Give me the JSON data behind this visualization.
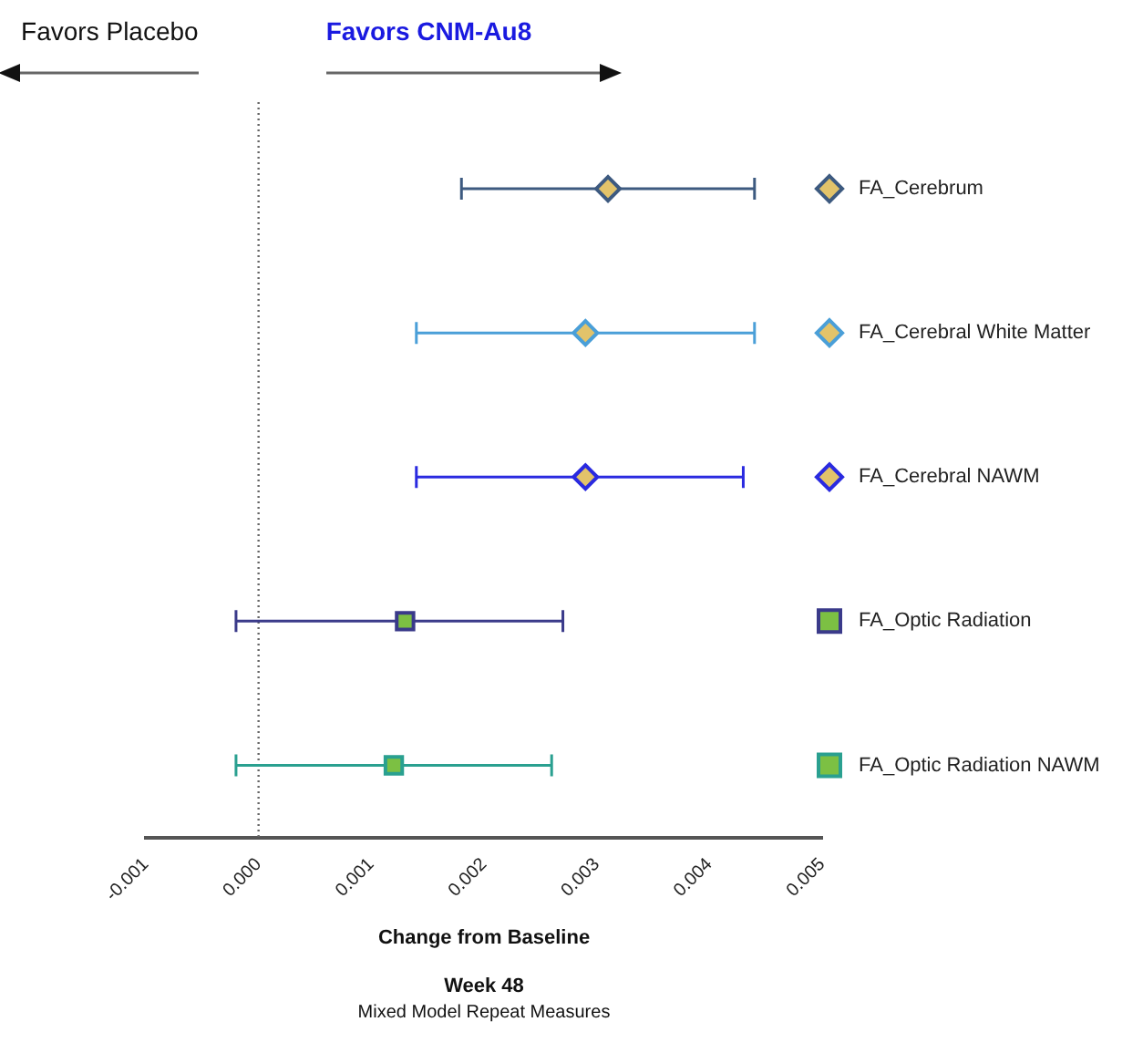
{
  "chart_data": {
    "type": "scatter",
    "orientation": "horizontal",
    "title": "Week 48",
    "subtitle": "Mixed Model Repeat Measures",
    "xlabel": "Change from Baseline",
    "annotations": [
      "Favors Placebo",
      "Favors CNM-Au8"
    ],
    "categories": [
      null,
      null,
      null,
      null,
      null
    ],
    "xlim": [
      -0.001,
      0.005
    ],
    "xticks": [
      {
        "value": -0.001,
        "label": "-0.001"
      },
      {
        "value": 0,
        "label": "0.000"
      },
      {
        "value": 0.001,
        "label": "0.001"
      },
      {
        "value": 0.002,
        "label": "0.002"
      },
      {
        "value": 0.003,
        "label": "0.003"
      },
      {
        "value": 0.004,
        "label": "0.004"
      },
      {
        "value": 0.005,
        "label": "0.005"
      }
    ],
    "grid": false,
    "legend": "right",
    "ref_lines": [
      {
        "axis": "x",
        "value": 0,
        "color": "#666666",
        "line_style": "dotted"
      }
    ],
    "series": [
      {
        "name": "FA_Cerebrum",
        "color": "#3d5a80",
        "marker": "diamond",
        "values": [
          0.0031,
          null,
          null,
          null,
          null
        ],
        "errors": [
          [
            0.0018,
            0.0044
          ],
          null,
          null,
          null,
          null
        ]
      },
      {
        "name": "FA_Cerebral White Matter",
        "color": "#4a9fd8",
        "marker": "diamond",
        "values": [
          null,
          0.0029,
          null,
          null,
          null
        ],
        "errors": [
          null,
          [
            0.0014,
            0.0044
          ],
          null,
          null,
          null
        ]
      },
      {
        "name": "FA_Cerebral NAWM",
        "color": "#2a2ae0",
        "marker": "diamond",
        "values": [
          null,
          null,
          0.0029,
          null,
          null
        ],
        "errors": [
          null,
          null,
          [
            0.0014,
            0.0043
          ],
          null,
          null
        ]
      },
      {
        "name": "FA_Optic Radiation",
        "color": "#3a3a8a",
        "marker": "square",
        "values": [
          null,
          null,
          null,
          0.0013,
          null
        ],
        "errors": [
          null,
          null,
          null,
          [
            -0.0002,
            0.0027
          ],
          null
        ]
      },
      {
        "name": "FA_Optic Radiation NAWM",
        "color": "#2aa090",
        "marker": "square",
        "values": [
          null,
          null,
          null,
          null,
          0.0012
        ],
        "errors": [
          null,
          null,
          null,
          null,
          [
            -0.0002,
            0.0026
          ]
        ]
      }
    ]
  }
}
